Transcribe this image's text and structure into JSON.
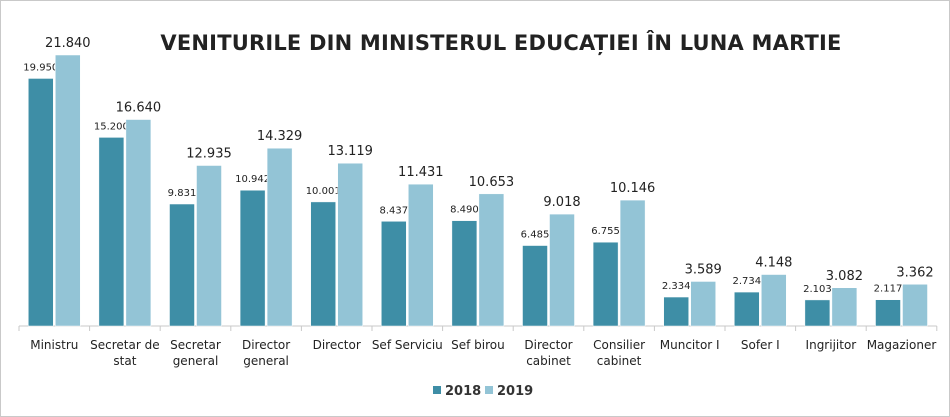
{
  "chart_data": {
    "type": "bar",
    "title": "VENITURILE DIN MINISTERUL EDUCAȚIEI ÎN LUNA MARTIE",
    "categories": [
      [
        "Ministru"
      ],
      [
        "Secretar de",
        "stat"
      ],
      [
        "Secretar",
        "general"
      ],
      [
        "Director",
        "general"
      ],
      [
        "Director"
      ],
      [
        "Sef Serviciu"
      ],
      [
        "Sef birou"
      ],
      [
        "Director",
        "cabinet"
      ],
      [
        "Consilier",
        "cabinet"
      ],
      [
        "Muncitor I"
      ],
      [
        "Sofer I"
      ],
      [
        "Ingrijitor"
      ],
      [
        "Magazioner"
      ]
    ],
    "series": [
      {
        "name": "2018",
        "color": "#3e8ea6",
        "values": [
          19950,
          15200,
          9831,
          10942,
          10001,
          8437,
          8490,
          6485,
          6755,
          2334,
          2734,
          2103,
          2117
        ],
        "labels": [
          "19.950",
          "15.200",
          "9.831",
          "10.942",
          "10.001",
          "8.437",
          "8.490",
          "6.485",
          "6.755",
          "2.334",
          "2.734",
          "2.103",
          "2.117"
        ]
      },
      {
        "name": "2019",
        "color": "#93c4d6",
        "values": [
          21840,
          16640,
          12935,
          14329,
          13119,
          11431,
          10653,
          9018,
          10146,
          3589,
          4148,
          3082,
          3362
        ],
        "labels": [
          "21.840",
          "16.640",
          "12.935",
          "14.329",
          "13.119",
          "11.431",
          "10.653",
          "9.018",
          "10.146",
          "3.589",
          "4.148",
          "3.082",
          "3.362"
        ]
      }
    ],
    "ylim": [
      0,
      21840
    ],
    "grid": false,
    "legend": "bottom-center"
  }
}
